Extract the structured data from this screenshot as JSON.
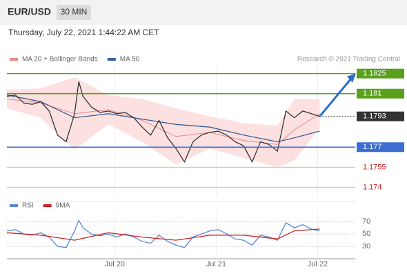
{
  "header": {
    "symbol": "EUR/USD",
    "timeframe": "30 MIN",
    "timestamp": "Thursday, July 22, 2021 1:44:22 AM CET"
  },
  "chart_data": [
    {
      "type": "line",
      "source": "Research © 2021 Trading Central",
      "xlim": [
        0,
        82.4
      ],
      "ylim": [
        1.1733,
        1.1831
      ],
      "xticks": [
        {
          "value": 25.5,
          "label": "Jul 20"
        },
        {
          "value": 49.5,
          "label": "Jul 21"
        },
        {
          "value": 73.5,
          "label": "Jul 22"
        }
      ],
      "series": [
        {
          "name": "MA 20 + Bollinger Bands",
          "color": "#e88a8a",
          "band_color": "#fde0e0",
          "x": [
            0,
            8,
            16,
            24,
            32,
            40,
            48,
            56,
            64,
            68,
            74
          ],
          "values": [
            1.1806,
            1.1803,
            1.1795,
            1.1798,
            1.179,
            1.1778,
            1.1781,
            1.1775,
            1.1772,
            1.1783,
            1.1795
          ],
          "upper": [
            1.1813,
            1.1814,
            1.1822,
            1.1809,
            1.1806,
            1.1799,
            1.1793,
            1.1788,
            1.1786,
            1.1806,
            1.1806
          ],
          "lower": [
            1.1799,
            1.1792,
            1.1768,
            1.1787,
            1.1774,
            1.1757,
            1.1769,
            1.1762,
            1.1755,
            1.176,
            1.1784
          ]
        },
        {
          "name": "MA 50",
          "color": "#3a5f9a",
          "x": [
            0,
            8,
            16,
            24,
            32,
            40,
            48,
            56,
            64,
            68,
            74
          ],
          "values": [
            1.1809,
            1.1804,
            1.1792,
            1.1795,
            1.1791,
            1.1787,
            1.1785,
            1.1779,
            1.1774,
            1.1777,
            1.1782
          ]
        },
        {
          "name": "EUR/USD",
          "color": "#333333",
          "x": [
            0,
            2,
            4,
            6,
            8,
            10,
            12,
            14,
            16,
            17,
            18,
            20,
            22,
            24,
            26,
            28,
            30,
            32,
            34,
            36,
            38,
            40,
            42,
            44,
            46,
            48,
            50,
            52,
            54,
            56,
            58,
            60,
            62,
            64,
            66,
            68,
            70,
            72,
            74
          ],
          "values": [
            1.1808,
            1.1809,
            1.1803,
            1.1802,
            1.1804,
            1.1797,
            1.1779,
            1.1774,
            1.1795,
            1.1819,
            1.1808,
            1.18,
            1.1796,
            1.1797,
            1.1795,
            1.1796,
            1.1792,
            1.1785,
            1.1779,
            1.179,
            1.1777,
            1.1769,
            1.1759,
            1.1774,
            1.1779,
            1.1781,
            1.1782,
            1.1779,
            1.1774,
            1.1771,
            1.1759,
            1.1774,
            1.1772,
            1.1767,
            1.1797,
            1.1792,
            1.1797,
            1.1795,
            1.1793
          ]
        }
      ],
      "levels": [
        {
          "value": 1.1825,
          "color": "#5aa01e",
          "style": "solid",
          "label_fill": true
        },
        {
          "value": 1.181,
          "color": "#5aa01e",
          "style": "solid",
          "label_fill": true
        },
        {
          "value": 1.1793,
          "color": "#333333",
          "style": "dotted",
          "label_fill": true
        },
        {
          "value": 1.177,
          "color": "#3b6fd0",
          "style": "solid",
          "label_fill": true
        },
        {
          "value": 1.1755,
          "color": "#e07070",
          "style": "solid",
          "label_fill": false
        },
        {
          "value": 1.174,
          "color": "#e07070",
          "style": "solid",
          "label_fill": false
        }
      ]
    },
    {
      "type": "line",
      "xlim": [
        0,
        82.4
      ],
      "ylim": [
        10,
        88
      ],
      "yticks": [
        70,
        50,
        30
      ],
      "series": [
        {
          "name": "RSI",
          "color": "#5b86d6",
          "x": [
            0,
            2,
            4,
            6,
            8,
            10,
            12,
            14,
            16,
            17,
            18,
            20,
            22,
            24,
            26,
            28,
            30,
            32,
            34,
            36,
            38,
            40,
            42,
            44,
            46,
            48,
            50,
            52,
            54,
            56,
            58,
            60,
            62,
            64,
            66,
            68,
            70,
            72,
            74
          ],
          "values": [
            55,
            57,
            50,
            48,
            52,
            45,
            30,
            28,
            55,
            72,
            60,
            50,
            47,
            50,
            45,
            50,
            45,
            38,
            35,
            48,
            38,
            32,
            28,
            45,
            50,
            55,
            57,
            50,
            42,
            40,
            32,
            48,
            45,
            40,
            68,
            60,
            65,
            58,
            55
          ]
        },
        {
          "name": "9MA",
          "color": "#cc2222",
          "x": [
            0,
            8,
            16,
            24,
            32,
            40,
            48,
            56,
            64,
            68,
            74
          ],
          "values": [
            52,
            48,
            40,
            52,
            45,
            40,
            48,
            48,
            42,
            55,
            58
          ]
        }
      ]
    }
  ]
}
